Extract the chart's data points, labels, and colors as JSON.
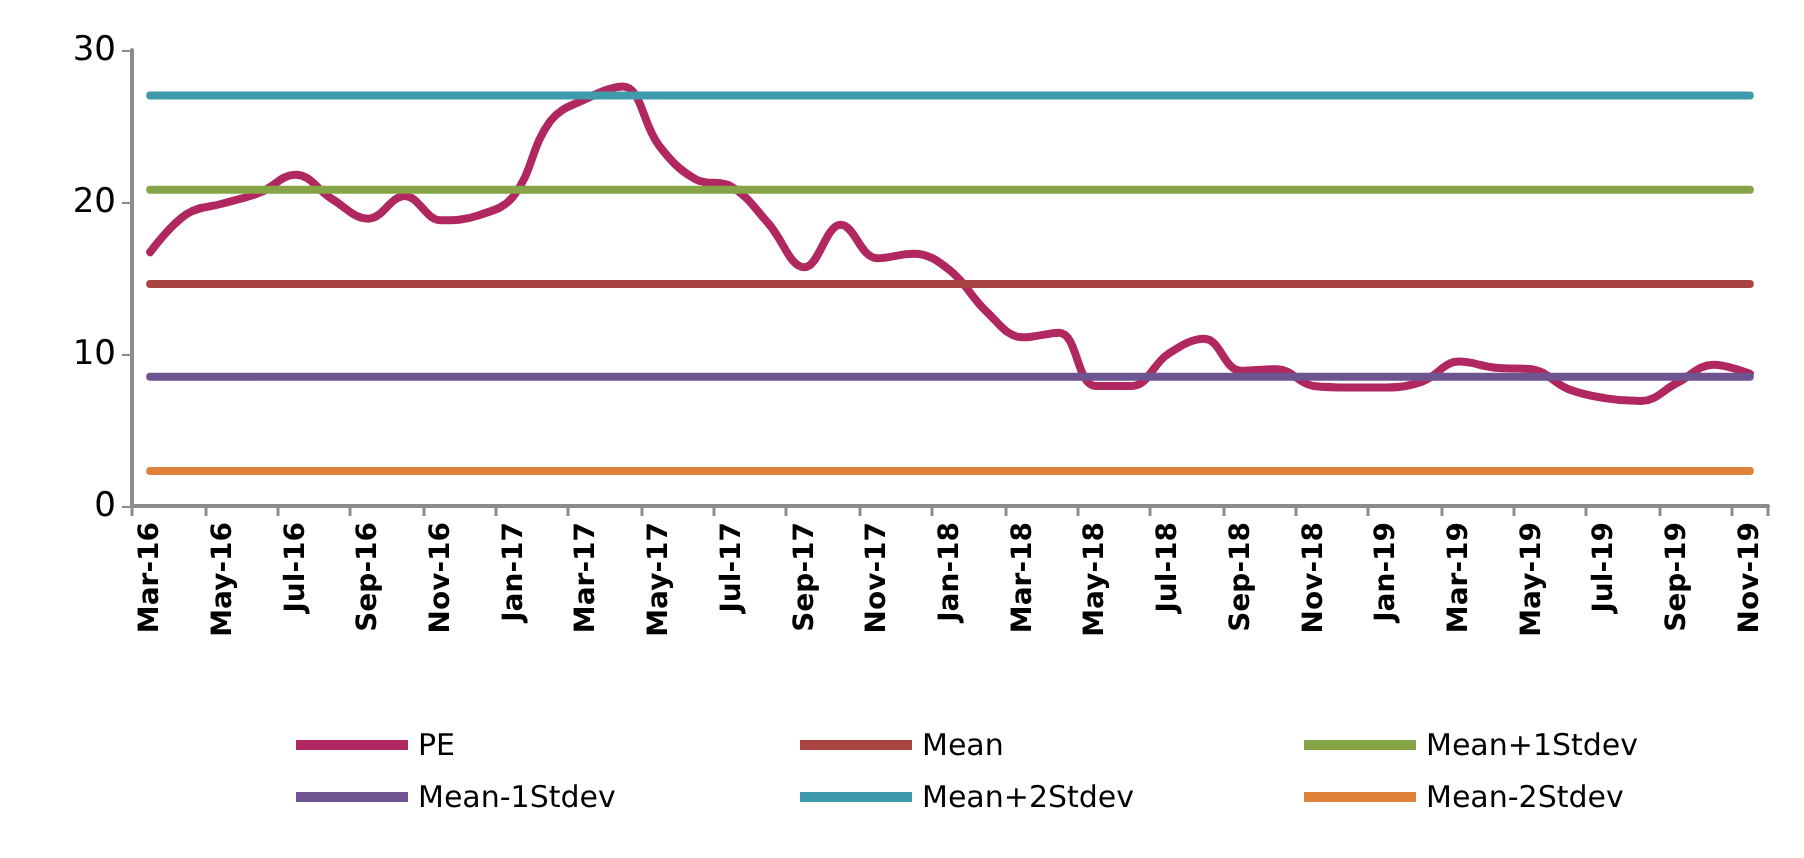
{
  "chart_data": {
    "type": "line",
    "categories": [
      "Mar-16",
      null,
      "May-16",
      null,
      "Jul-16",
      null,
      "Sep-16",
      null,
      "Nov-16",
      null,
      "Jan-17",
      null,
      "Mar-17",
      null,
      "May-17",
      null,
      "Jul-17",
      null,
      "Sep-17",
      null,
      "Nov-17",
      null,
      "Jan-18",
      null,
      "Mar-18",
      null,
      "May-18",
      null,
      "Jul-18",
      null,
      "Sep-18",
      null,
      "Nov-18",
      null,
      "Jan-19",
      null,
      "Mar-19",
      null,
      "May-19",
      null,
      "Jul-19",
      null,
      "Sep-19",
      null,
      "Nov-19"
    ],
    "series": [
      {
        "name": "PE",
        "color": "#b0285f",
        "values": [
          16.7,
          19.2,
          19.9,
          20.6,
          21.8,
          20.2,
          18.9,
          20.4,
          18.8,
          19.1,
          20.4,
          25.3,
          26.8,
          27.6,
          23.7,
          21.5,
          21.0,
          18.6,
          15.7,
          18.5,
          16.3,
          16.6,
          15.5,
          12.8,
          11.1,
          11.4,
          7.9,
          7.9,
          10.0,
          11.0,
          8.9,
          9.0,
          7.9,
          7.8,
          7.8,
          8.2,
          9.5,
          9.1,
          9.0,
          7.7,
          7.1,
          6.9,
          8.1,
          9.3,
          8.7
        ]
      },
      {
        "name": "Mean",
        "color": "#a94442",
        "values": [
          14.6,
          14.6,
          14.6,
          14.6,
          14.6,
          14.6,
          14.6,
          14.6,
          14.6,
          14.6,
          14.6,
          14.6,
          14.6,
          14.6,
          14.6,
          14.6,
          14.6,
          14.6,
          14.6,
          14.6,
          14.6,
          14.6,
          14.6,
          14.6,
          14.6,
          14.6,
          14.6,
          14.6,
          14.6,
          14.6,
          14.6,
          14.6,
          14.6,
          14.6,
          14.6,
          14.6,
          14.6,
          14.6,
          14.6,
          14.6,
          14.6,
          14.6,
          14.6,
          14.6,
          14.6
        ]
      },
      {
        "name": "Mean+1Stdev",
        "color": "#84a447",
        "values": [
          20.8,
          20.8,
          20.8,
          20.8,
          20.8,
          20.8,
          20.8,
          20.8,
          20.8,
          20.8,
          20.8,
          20.8,
          20.8,
          20.8,
          20.8,
          20.8,
          20.8,
          20.8,
          20.8,
          20.8,
          20.8,
          20.8,
          20.8,
          20.8,
          20.8,
          20.8,
          20.8,
          20.8,
          20.8,
          20.8,
          20.8,
          20.8,
          20.8,
          20.8,
          20.8,
          20.8,
          20.8,
          20.8,
          20.8,
          20.8,
          20.8,
          20.8,
          20.8,
          20.8,
          20.8
        ]
      },
      {
        "name": "Mean-1Stdev",
        "color": "#6e5490",
        "values": [
          8.5,
          8.5,
          8.5,
          8.5,
          8.5,
          8.5,
          8.5,
          8.5,
          8.5,
          8.5,
          8.5,
          8.5,
          8.5,
          8.5,
          8.5,
          8.5,
          8.5,
          8.5,
          8.5,
          8.5,
          8.5,
          8.5,
          8.5,
          8.5,
          8.5,
          8.5,
          8.5,
          8.5,
          8.5,
          8.5,
          8.5,
          8.5,
          8.5,
          8.5,
          8.5,
          8.5,
          8.5,
          8.5,
          8.5,
          8.5,
          8.5,
          8.5,
          8.5,
          8.5,
          8.5
        ]
      },
      {
        "name": "Mean+2Stdev",
        "color": "#3f9aae",
        "values": [
          27.0,
          27.0,
          27.0,
          27.0,
          27.0,
          27.0,
          27.0,
          27.0,
          27.0,
          27.0,
          27.0,
          27.0,
          27.0,
          27.0,
          27.0,
          27.0,
          27.0,
          27.0,
          27.0,
          27.0,
          27.0,
          27.0,
          27.0,
          27.0,
          27.0,
          27.0,
          27.0,
          27.0,
          27.0,
          27.0,
          27.0,
          27.0,
          27.0,
          27.0,
          27.0,
          27.0,
          27.0,
          27.0,
          27.0,
          27.0,
          27.0,
          27.0,
          27.0,
          27.0,
          27.0
        ]
      },
      {
        "name": "Mean-2Stdev",
        "color": "#e0823a",
        "values": [
          2.3,
          2.3,
          2.3,
          2.3,
          2.3,
          2.3,
          2.3,
          2.3,
          2.3,
          2.3,
          2.3,
          2.3,
          2.3,
          2.3,
          2.3,
          2.3,
          2.3,
          2.3,
          2.3,
          2.3,
          2.3,
          2.3,
          2.3,
          2.3,
          2.3,
          2.3,
          2.3,
          2.3,
          2.3,
          2.3,
          2.3,
          2.3,
          2.3,
          2.3,
          2.3,
          2.3,
          2.3,
          2.3,
          2.3,
          2.3,
          2.3,
          2.3,
          2.3,
          2.3,
          2.3
        ]
      }
    ],
    "ylim": [
      0,
      30
    ],
    "yticks": [
      0,
      10,
      20,
      30
    ],
    "grid": false,
    "legend": "bottom",
    "marker": "none",
    "line_style": "solid"
  }
}
